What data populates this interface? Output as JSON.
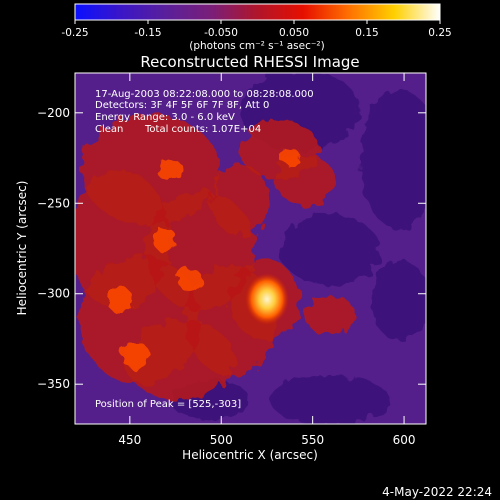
{
  "colorbar": {
    "tick_labels": [
      "-0.25",
      "-0.15",
      "-0.050",
      "0.050",
      "0.15",
      "0.25"
    ],
    "tick_values": [
      -0.25,
      -0.15,
      -0.05,
      0.05,
      0.15,
      0.25
    ],
    "range": [
      -0.25,
      0.25
    ],
    "units_label": "(photons cm⁻² s⁻¹ asec⁻²)",
    "gradient_colors": [
      "#0a10ff",
      "#3a16c8",
      "#5a1f9a",
      "#7a1f78",
      "#b0152a",
      "#e60f00",
      "#ff7000",
      "#ffd000",
      "#ffffff"
    ]
  },
  "plot": {
    "title": "Reconstructed RHESSI Image",
    "xlabel": "Heliocentric X (arcsec)",
    "ylabel": "Heliocentric Y (arcsec)",
    "xlim": [
      420,
      612
    ],
    "ylim": [
      -372,
      -178
    ],
    "x_ticks": [
      450,
      500,
      550,
      600
    ],
    "y_ticks": [
      -200,
      -250,
      -300,
      -350
    ],
    "x_tick_labels": [
      "450",
      "500",
      "550",
      "600"
    ],
    "y_tick_labels": [
      "−200",
      "−250",
      "−300",
      "−350"
    ]
  },
  "info": {
    "time_range": "17-Aug-2003 08:22:08.000 to 08:28:08.000",
    "detectors": "Detectors: 3F 4F 5F 6F 7F 8F, Att 0",
    "energy_range": "Energy Range: 3.0 - 6.0 keV",
    "algorithm": "Clean",
    "total_counts": "Total counts: 1.07E+04",
    "peak_position": "Position of Peak = [525,-303]"
  },
  "image": {
    "peak": [
      525,
      -303
    ],
    "colors": {
      "background": "#541f8a",
      "dark": "#3a1475",
      "emission": "#b81a18",
      "bright": "#ff4a00",
      "core": "#fff2c0"
    }
  },
  "footer": {
    "date": "4-May-2022 22:24"
  }
}
